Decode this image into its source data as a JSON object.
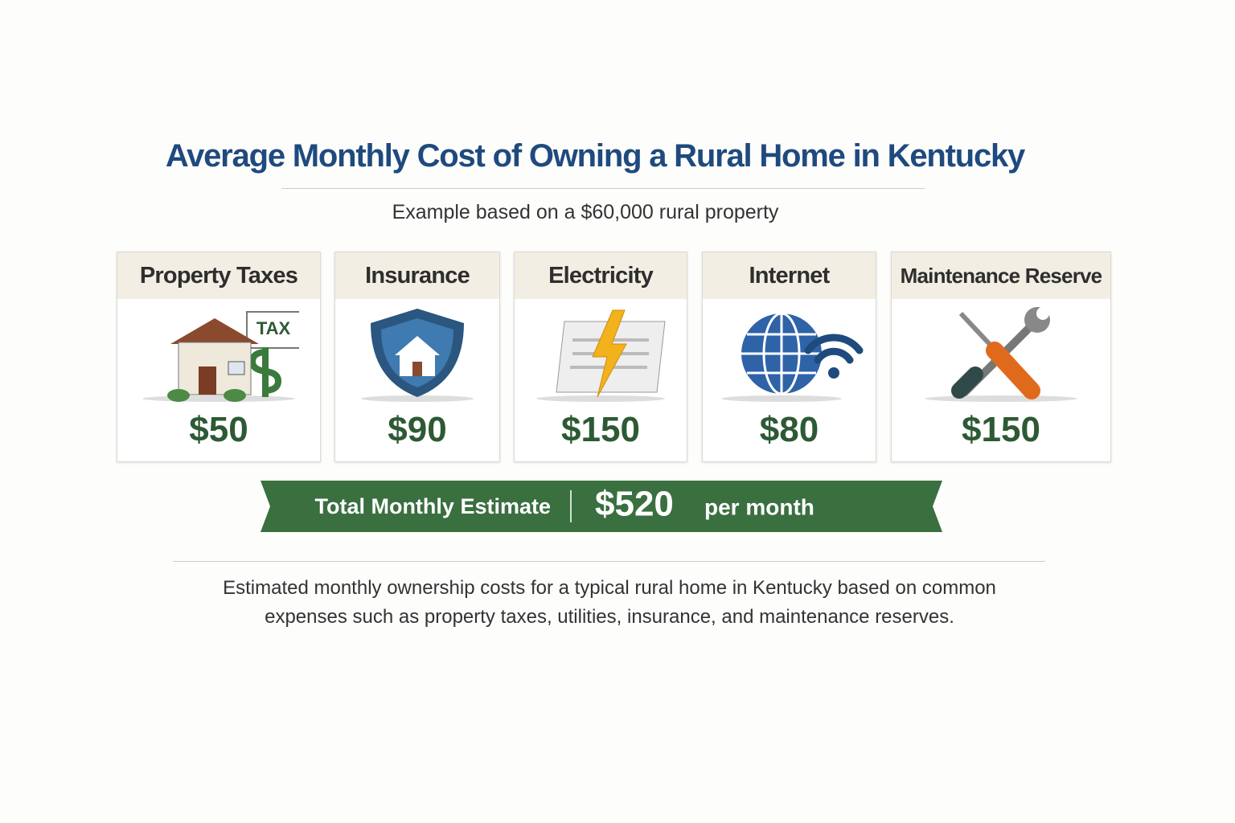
{
  "header": {
    "title": "Average Monthly Cost of Owning a Rural Home in Kentucky",
    "subtitle": "Example based on a $60,000 rural property"
  },
  "cards": [
    {
      "label": "Property Taxes",
      "amount": "$50",
      "icon_label": "TAX"
    },
    {
      "label": "Insurance",
      "amount": "$90"
    },
    {
      "label": "Electricity",
      "amount": "$150"
    },
    {
      "label": "Internet",
      "amount": "$80"
    },
    {
      "label": "Maintenance Reserve",
      "amount": "$150"
    }
  ],
  "total": {
    "label": "Total Monthly Estimate",
    "amount": "$520",
    "unit": "per month"
  },
  "footnote": [
    "Estimated monthly ownership costs for a typical rural home in Kentucky based on common",
    "expenses such as property taxes, utilities, insurance, and maintenance reserves."
  ]
}
